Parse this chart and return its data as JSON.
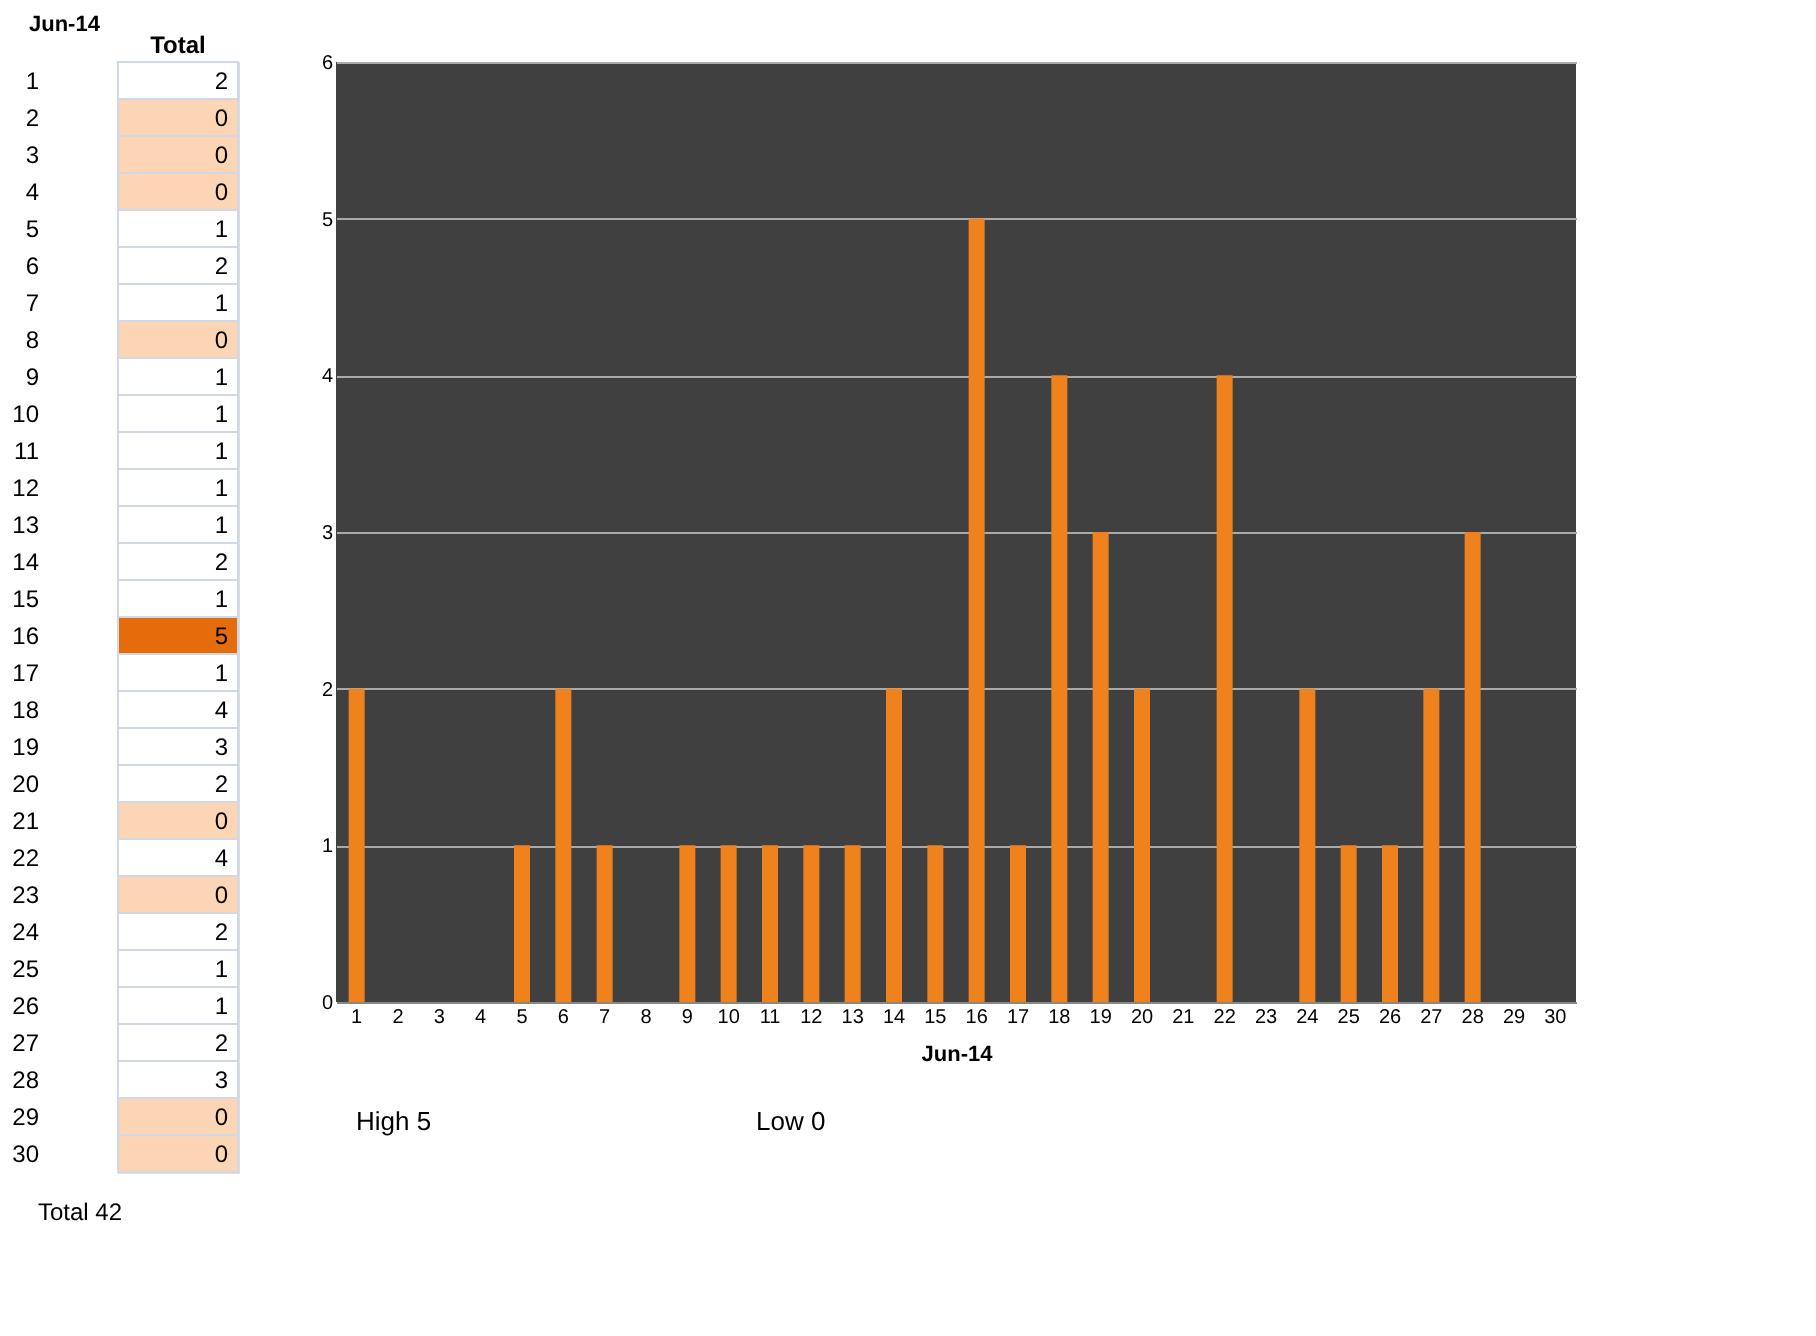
{
  "chart_data": [
    {
      "type": "heatmap",
      "ylabel": "Jun-14",
      "annotations": [
        "Total 42"
      ],
      "data_labels": true,
      "categories": [
        "Total"
      ],
      "y_categories": [
        "1",
        "2",
        "3",
        "4",
        "5",
        "6",
        "7",
        "8",
        "9",
        "10",
        "11",
        "12",
        "13",
        "14",
        "15",
        "16",
        "17",
        "18",
        "19",
        "20",
        "21",
        "22",
        "23",
        "24",
        "25",
        "26",
        "27",
        "28",
        "29",
        "30"
      ],
      "cells": [
        [
          2
        ],
        [
          0
        ],
        [
          0
        ],
        [
          0
        ],
        [
          1
        ],
        [
          2
        ],
        [
          1
        ],
        [
          0
        ],
        [
          1
        ],
        [
          1
        ],
        [
          1
        ],
        [
          1
        ],
        [
          1
        ],
        [
          2
        ],
        [
          1
        ],
        [
          5
        ],
        [
          1
        ],
        [
          4
        ],
        [
          3
        ],
        [
          2
        ],
        [
          0
        ],
        [
          4
        ],
        [
          0
        ],
        [
          2
        ],
        [
          1
        ],
        [
          1
        ],
        [
          2
        ],
        [
          3
        ],
        [
          0
        ],
        [
          0
        ]
      ]
    },
    {
      "type": "bar",
      "xlabel": "Jun-14",
      "categories": [
        "1",
        "2",
        "3",
        "4",
        "5",
        "6",
        "7",
        "8",
        "9",
        "10",
        "11",
        "12",
        "13",
        "14",
        "15",
        "16",
        "17",
        "18",
        "19",
        "20",
        "21",
        "22",
        "23",
        "24",
        "25",
        "26",
        "27",
        "28",
        "29",
        "30"
      ],
      "values": [
        2,
        0,
        0,
        0,
        1,
        2,
        1,
        0,
        1,
        1,
        1,
        1,
        1,
        2,
        1,
        5,
        1,
        4,
        3,
        2,
        0,
        4,
        0,
        2,
        1,
        1,
        2,
        3,
        0,
        0
      ],
      "color": "#f0821e",
      "ylim": [
        0,
        6
      ],
      "yticks": [
        0,
        1,
        2,
        3,
        4,
        5,
        6
      ],
      "grid": "y",
      "annotations": [
        "High 5",
        "Low 0"
      ]
    }
  ]
}
